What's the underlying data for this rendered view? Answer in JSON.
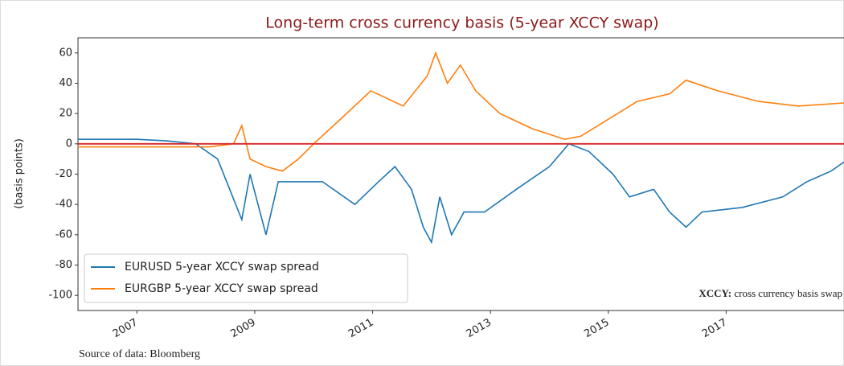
{
  "chart_data": {
    "type": "line",
    "title": "Long-term cross currency basis (5-year XCCY swap)",
    "ylabel": "(basis points)",
    "xlim": [
      2006,
      2019
    ],
    "xticks": [
      2007,
      2009,
      2011,
      2013,
      2015,
      2017
    ],
    "ylim": [
      -110,
      70
    ],
    "yticks": [
      -100,
      -80,
      -60,
      -40,
      -20,
      0,
      20,
      40,
      60
    ],
    "hline": {
      "value": 0,
      "color": "#d62728"
    },
    "legend": "lower left",
    "series": [
      {
        "name": "EURUSD 5-year XCCY swap spread",
        "color": "#1f77b4",
        "x": [
          2006,
          2006.5,
          2007,
          2007.5,
          2008,
          2008.37,
          2008.78,
          2008.92,
          2009.19,
          2009.4,
          2010.15,
          2010.7,
          2011.1,
          2011.38,
          2011.66,
          2011.86,
          2012.0,
          2012.14,
          2012.34,
          2012.55,
          2012.9,
          2013.44,
          2014.0,
          2014.33,
          2014.67,
          2015.08,
          2015.36,
          2015.77,
          2016.04,
          2016.32,
          2016.59,
          2017.27,
          2017.96,
          2018.37,
          2018.78,
          2019.0
        ],
        "values": [
          3,
          3,
          3,
          2,
          0,
          -10,
          -50,
          -20,
          -60,
          -25,
          -25,
          -40,
          -25,
          -15,
          -30,
          -55,
          -65,
          -35,
          -60,
          -45,
          -45,
          -30,
          -15,
          0,
          -5,
          -20,
          -35,
          -30,
          -45,
          -55,
          -45,
          -42,
          -35,
          -25,
          -18,
          -12
        ]
      },
      {
        "name": "EURGBP 5-year XCCY swap spread",
        "color": "#ff7f0e",
        "x": [
          2006,
          2007,
          2008.23,
          2008.64,
          2008.78,
          2008.92,
          2009.19,
          2009.47,
          2009.74,
          2010.0,
          2010.42,
          2010.97,
          2011.52,
          2011.93,
          2012.07,
          2012.27,
          2012.49,
          2012.75,
          2013.16,
          2013.71,
          2014.26,
          2014.53,
          2014.95,
          2015.49,
          2016.04,
          2016.32,
          2016.86,
          2017.55,
          2018.23,
          2019.0
        ],
        "values": [
          -2,
          -2,
          -2,
          0,
          12,
          -10,
          -15,
          -18,
          -10,
          0,
          15,
          35,
          25,
          45,
          60,
          40,
          52,
          35,
          20,
          10,
          3,
          5,
          15,
          28,
          33,
          42,
          35,
          28,
          25,
          27
        ]
      }
    ],
    "annotation": {
      "bold": "XCCY:",
      "text": "cross currency basis swap"
    },
    "source": "Source of data: Bloomberg"
  }
}
